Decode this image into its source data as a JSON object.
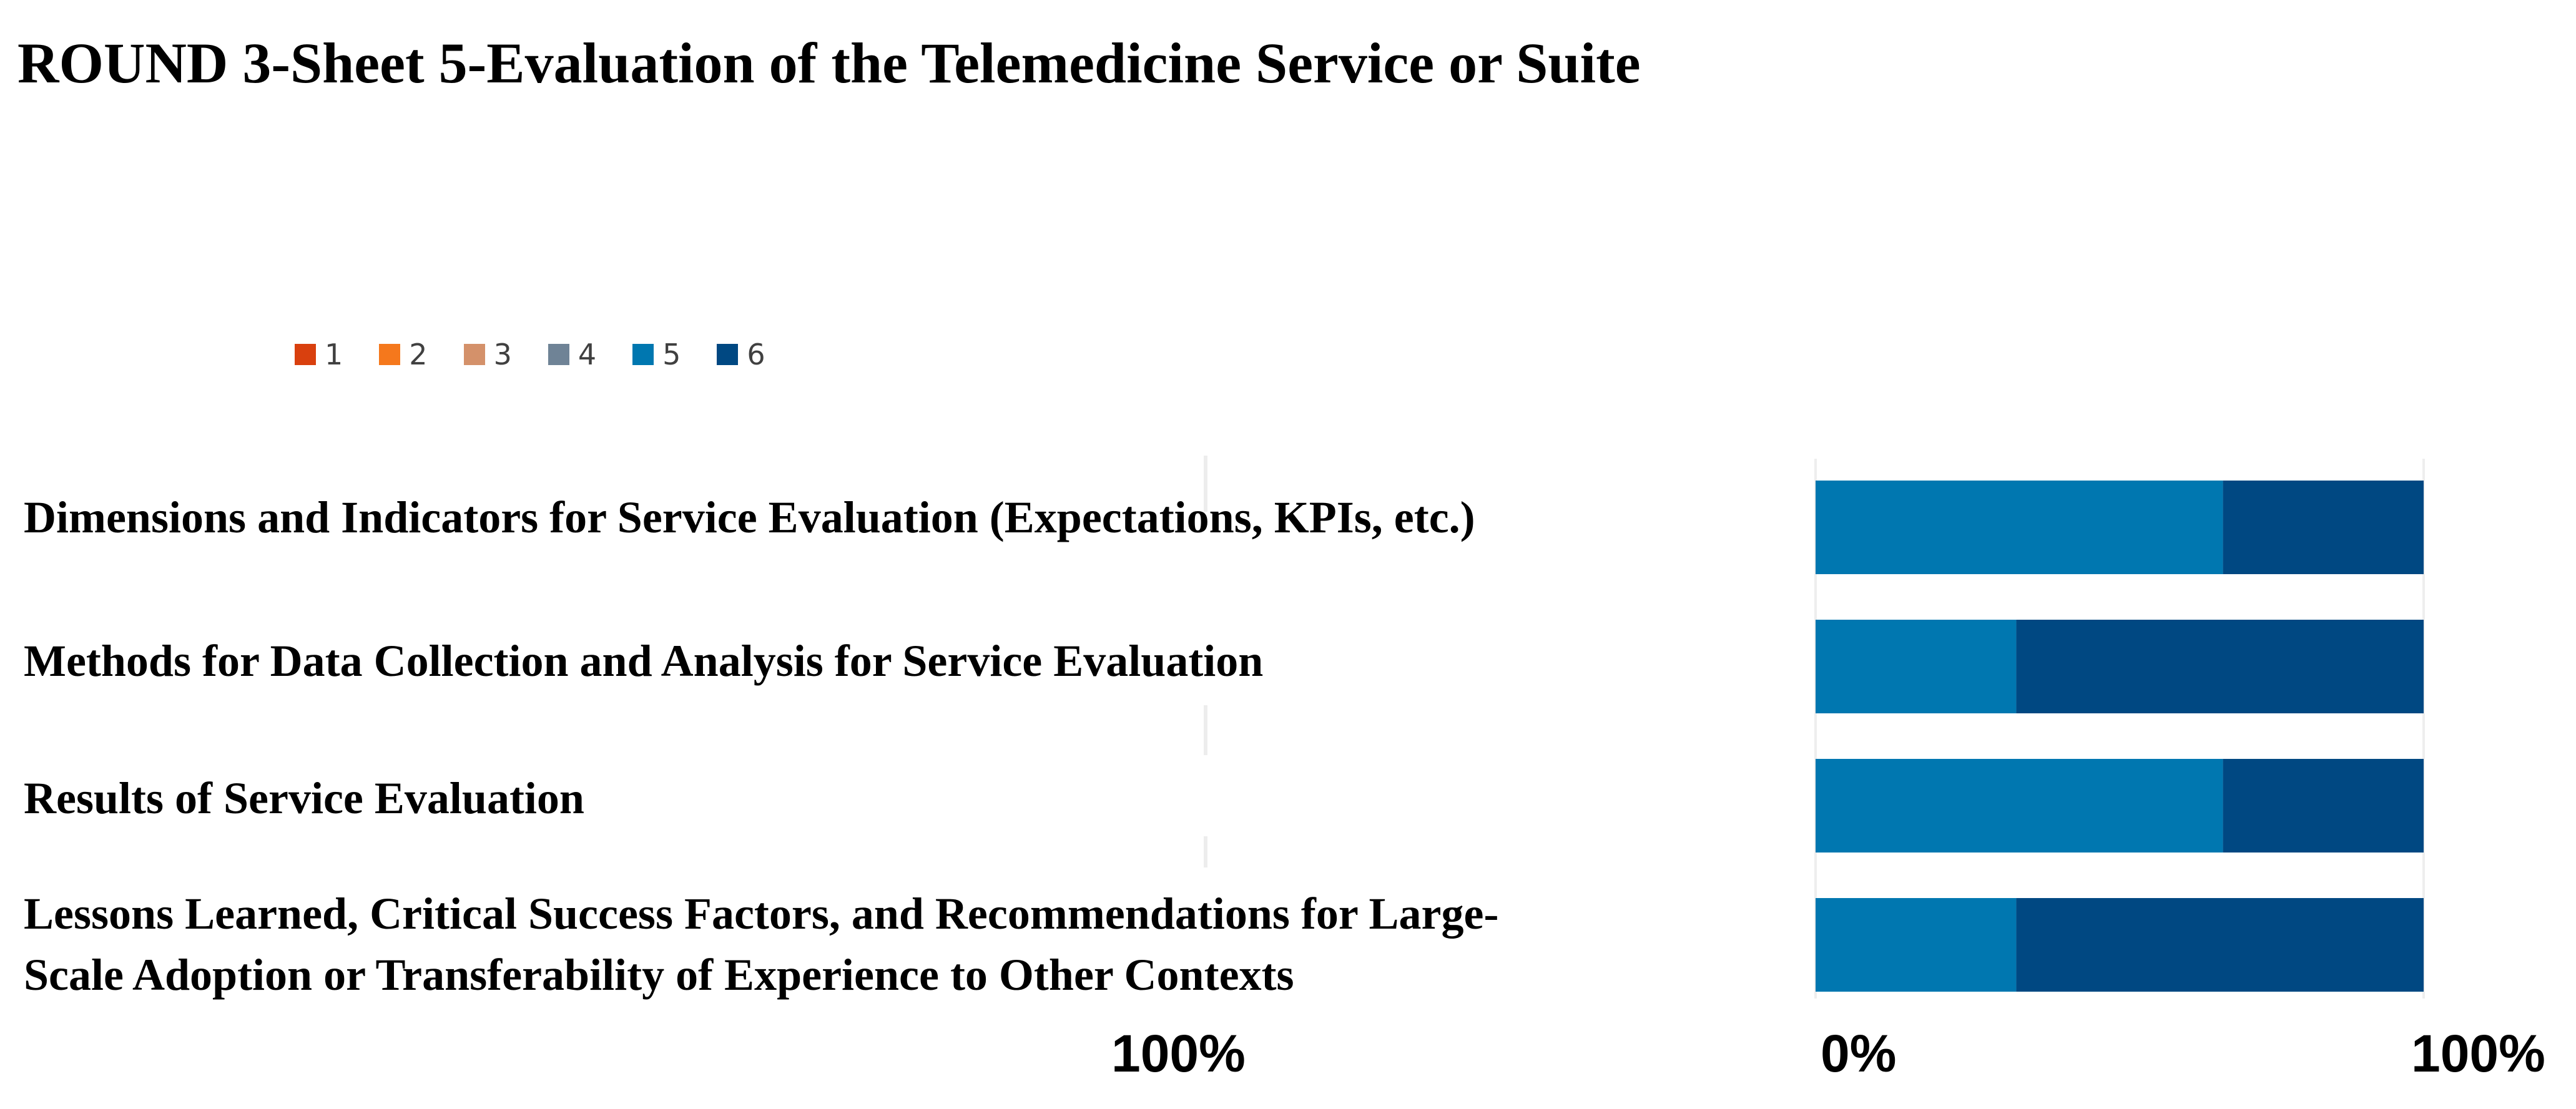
{
  "title": "ROUND 3-Sheet 5-Evaluation of the Telemedicine Service or Suite",
  "chart_data": {
    "type": "bar",
    "orientation": "horizontal",
    "stacked": "100%",
    "categories": [
      [
        "Dimensions and Indicators for Service Evaluation (Expectations, KPIs, etc.)"
      ],
      [
        "Methods for Data Collection and Analysis for Service Evaluation"
      ],
      [
        "Results of Service Evaluation"
      ],
      [
        "Lessons Learned, Critical Success Factors, and Recommendations for Large-",
        "Scale Adoption or Transferability of Experience to Other Contexts"
      ]
    ],
    "series": [
      {
        "name": "1",
        "color": "#D9400E",
        "values": [
          0,
          0,
          0,
          0
        ]
      },
      {
        "name": "2",
        "color": "#F5781C",
        "values": [
          0,
          0,
          0,
          0
        ]
      },
      {
        "name": "3",
        "color": "#D4916A",
        "values": [
          0,
          0,
          0,
          0
        ]
      },
      {
        "name": "4",
        "color": "#6F8396",
        "values": [
          0,
          0,
          0,
          0
        ]
      },
      {
        "name": "5",
        "color": "#0077B0",
        "values": [
          67,
          33,
          67,
          33
        ]
      },
      {
        "name": "6",
        "color": "#004882",
        "values": [
          33,
          67,
          33,
          67
        ]
      }
    ],
    "xlim": [
      0,
      100
    ],
    "x_tick_labels": [
      "0%",
      "100%"
    ],
    "left_axis_end_label": "100%",
    "legend_position": "top-left",
    "grid": false
  }
}
